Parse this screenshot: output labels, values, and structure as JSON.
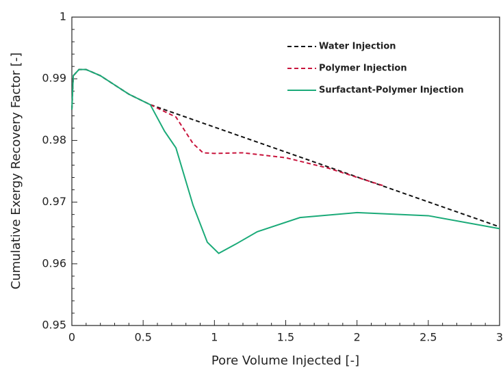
{
  "chart_data": {
    "type": "line",
    "xlabel": "Pore Volume Injected [-]",
    "ylabel": "Cumulative Exergy Recovery Factor [-]",
    "xlim": [
      0,
      3
    ],
    "ylim": [
      0.95,
      1
    ],
    "xticks": [
      0,
      0.5,
      1,
      1.5,
      2,
      2.5,
      3
    ],
    "yticks": [
      0.95,
      0.96,
      0.97,
      0.98,
      0.99,
      1
    ],
    "legend": "upper right",
    "series": [
      {
        "name": "Water Injection",
        "color": "#111111",
        "dash": true,
        "x": [
          0,
          0.01,
          0.05,
          0.1,
          0.2,
          0.3,
          0.4,
          0.55,
          3
        ],
        "values": [
          0.985,
          0.9905,
          0.9915,
          0.9915,
          0.9905,
          0.989,
          0.9875,
          0.9858,
          0.966
        ]
      },
      {
        "name": "Polymer Injection",
        "color": "#c8143c",
        "dash": true,
        "x": [
          0,
          0.01,
          0.05,
          0.1,
          0.2,
          0.3,
          0.4,
          0.55,
          0.73,
          0.85,
          0.92,
          1.0,
          1.2,
          1.5,
          1.8,
          2.18
        ],
        "values": [
          0.985,
          0.9905,
          0.9915,
          0.9915,
          0.9905,
          0.989,
          0.9875,
          0.9858,
          0.9838,
          0.9795,
          0.978,
          0.9779,
          0.978,
          0.9772,
          0.9755,
          0.9727
        ]
      },
      {
        "name": "Surfactant-Polymer Injection",
        "color": "#1aaa78",
        "dash": false,
        "x": [
          0,
          0.01,
          0.05,
          0.1,
          0.2,
          0.3,
          0.4,
          0.55,
          0.65,
          0.73,
          0.85,
          0.95,
          1.03,
          1.15,
          1.3,
          1.6,
          2.0,
          2.5,
          3
        ],
        "values": [
          0.985,
          0.9905,
          0.9915,
          0.9915,
          0.9905,
          0.989,
          0.9875,
          0.9858,
          0.9815,
          0.9788,
          0.9695,
          0.9635,
          0.9617,
          0.9632,
          0.9652,
          0.9675,
          0.9683,
          0.9678,
          0.9657
        ]
      }
    ]
  }
}
